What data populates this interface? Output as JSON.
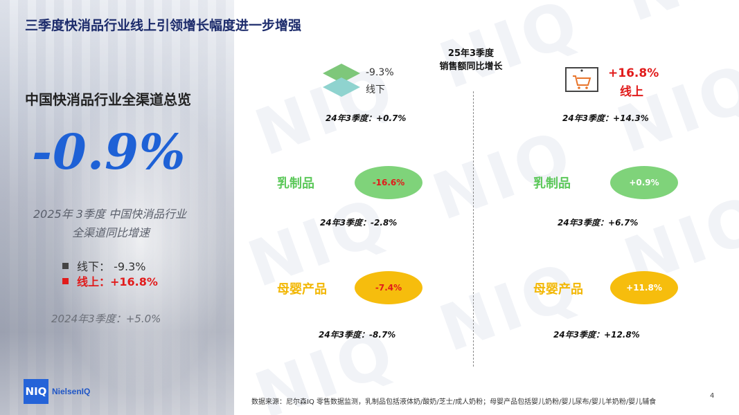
{
  "title": "三季度快消品行业线上引领增长幅度进一步增强",
  "left_panel": {
    "heading": "中国快消品行业全渠道总览",
    "big_value": "-0.9%",
    "subtitle_line1": "2025年 3季度 中国快消品行业",
    "subtitle_line2": "全渠道同比增速",
    "offline_legend": "线下：  -9.3%",
    "online_legend": "线上：+16.8%",
    "previous": "2024年3季度：+5.0%"
  },
  "center_heading": {
    "line1": "25年3季度",
    "line2": "销售额同比增长"
  },
  "offline": {
    "value": "-9.3%",
    "label": "线下",
    "previous": "24年3季度：+0.7%",
    "dairy": {
      "label": "乳制品",
      "value": "-16.6%",
      "previous": "24年3季度：-2.8%"
    },
    "baby": {
      "label": "母婴产品",
      "value": "-7.4%",
      "previous": "24年3季度：-8.7%"
    }
  },
  "online": {
    "value": "+16.8%",
    "label": "线上",
    "previous": "24年3季度：+14.3%",
    "dairy": {
      "label": "乳制品",
      "value": "+0.9%",
      "previous": "24年3季度：+6.7%"
    },
    "baby": {
      "label": "母婴产品",
      "value": "+11.8%",
      "previous": "24年3季度：+12.8%"
    }
  },
  "logo": {
    "mark": "NIQ",
    "name": "NielsenIQ"
  },
  "footnote": "数据来源：尼尔森IQ 零售数据监测，乳制品包括液体奶/酸奶/芝士/成人奶粉；母婴产品包括婴儿奶粉/婴儿尿布/婴儿羊奶粉/婴儿辅食",
  "page_number": "4",
  "colors": {
    "title": "#1c2b6b",
    "accent_blue": "#1e61d6",
    "online_red": "#e11b1b",
    "dairy_green": "#7fd37a",
    "baby_yellow": "#f6bd0d"
  },
  "icons": [
    "diamond-stack-icon",
    "shopping-cart-monitor-icon"
  ]
}
